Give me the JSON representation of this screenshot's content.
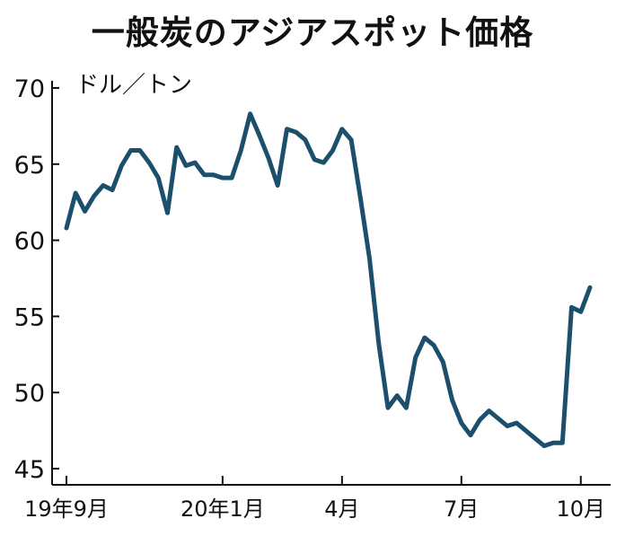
{
  "chart_data": {
    "type": "line",
    "title": "一般炭のアジアスポット価格",
    "ylabel": "ドル／トン",
    "xlabel": "",
    "ylim": [
      45,
      70
    ],
    "yticks": [
      45,
      50,
      55,
      60,
      65,
      70
    ],
    "grid": false,
    "legend": "none",
    "x_tick_labels": [
      {
        "label": "19年9月",
        "index": 0
      },
      {
        "label": "20年1月",
        "index": 17
      },
      {
        "label": "4月",
        "index": 30
      },
      {
        "label": "7月",
        "index": 43
      },
      {
        "label": "10月",
        "index": 56
      }
    ],
    "series": [
      {
        "values": [
          60.8,
          63.1,
          61.9,
          62.9,
          63.6,
          63.3,
          64.9,
          65.9,
          65.9,
          65.1,
          64.1,
          61.8,
          66.1,
          64.9,
          65.1,
          64.3,
          64.3,
          64.1,
          64.1,
          65.9,
          68.3,
          66.9,
          65.4,
          63.6,
          67.3,
          67.1,
          66.6,
          65.3,
          65.1,
          65.9,
          67.3,
          66.6,
          62.8,
          58.8,
          53.2,
          49.0,
          49.8,
          49.0,
          52.3,
          53.6,
          53.1,
          52.0,
          49.5,
          48.0,
          47.2,
          48.2,
          48.8,
          48.3,
          47.8,
          48.0,
          47.5,
          47.0,
          46.5,
          46.7,
          46.7,
          55.6,
          55.3,
          56.9
        ],
        "color": "#1b4f6b"
      }
    ]
  }
}
